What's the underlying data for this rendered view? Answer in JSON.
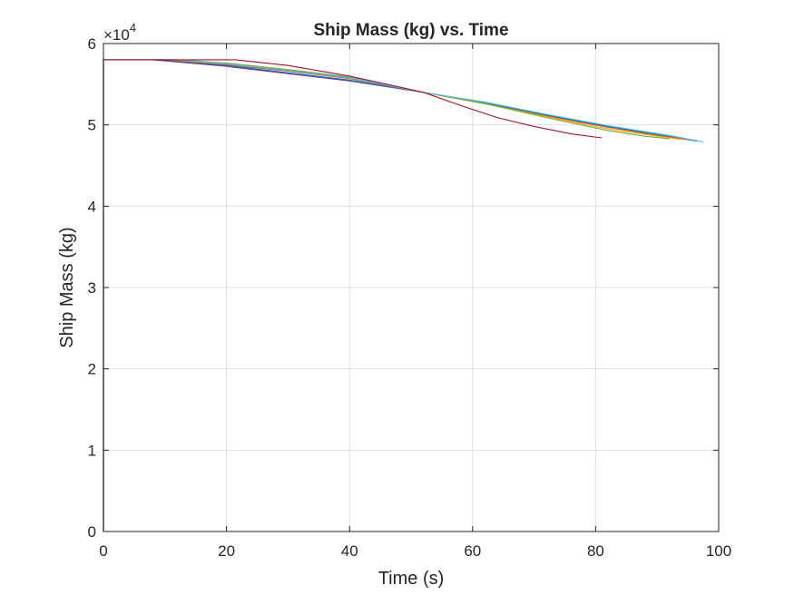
{
  "chart_data": {
    "type": "line",
    "title": "Ship Mass (kg) vs. Time",
    "xlabel": "Time (s)",
    "ylabel": "Ship Mass (kg)",
    "exponent_label": "×10",
    "exponent_power": "4",
    "xlim": [
      0,
      100
    ],
    "ylim": [
      0,
      60000
    ],
    "xticks": [
      0,
      20,
      40,
      60,
      80,
      100
    ],
    "yticks": [
      0,
      10000,
      20000,
      30000,
      40000,
      50000,
      60000
    ],
    "ytick_labels": [
      "0",
      "1",
      "2",
      "3",
      "4",
      "5",
      "6"
    ],
    "grid": true,
    "legend": "none",
    "series": [
      {
        "color": "#7E2F8E",
        "x": [
          0,
          0,
          8,
          20,
          30,
          40,
          52,
          62,
          72,
          82,
          90,
          96.5
        ],
        "y": [
          0,
          58000,
          58000,
          57200,
          56300,
          55400,
          54000,
          52700,
          51200,
          49800,
          48800,
          48000
        ]
      },
      {
        "color": "#0072BD",
        "x": [
          0,
          0,
          9,
          20,
          30,
          40,
          52,
          62,
          72,
          82,
          90,
          96
        ],
        "y": [
          0,
          58000,
          58000,
          57300,
          56400,
          55500,
          54000,
          52700,
          51200,
          49800,
          48800,
          48100
        ]
      },
      {
        "color": "#D95319",
        "x": [
          0,
          0,
          10,
          20,
          30,
          40,
          52,
          62,
          72,
          82,
          90,
          95
        ],
        "y": [
          0,
          58000,
          58000,
          57400,
          56600,
          55700,
          54000,
          52600,
          51100,
          49700,
          48700,
          48200
        ]
      },
      {
        "color": "#EDB120",
        "x": [
          0,
          0,
          11,
          20,
          30,
          40,
          52,
          62,
          72,
          82,
          90,
          94
        ],
        "y": [
          0,
          58000,
          58000,
          57500,
          56700,
          55800,
          54000,
          52600,
          51000,
          49500,
          48600,
          48200
        ]
      },
      {
        "color": "#77AC30",
        "x": [
          0,
          0,
          12,
          20,
          30,
          40,
          52,
          62,
          72,
          82,
          88,
          92
        ],
        "y": [
          0,
          58000,
          58000,
          57600,
          56800,
          55900,
          54000,
          52600,
          50900,
          49300,
          48600,
          48300
        ]
      },
      {
        "color": "#4DBEEE",
        "x": [
          0,
          0,
          12,
          20,
          30,
          40,
          52,
          62,
          72,
          82,
          92,
          97.5
        ],
        "y": [
          0,
          58000,
          58000,
          57500,
          56700,
          55800,
          54000,
          52800,
          51300,
          49900,
          48700,
          47900
        ]
      },
      {
        "color": "#A2142F",
        "x": [
          0,
          0,
          21.5,
          30,
          40,
          46,
          52,
          58,
          64,
          70,
          76,
          81
        ],
        "y": [
          0,
          58000,
          58000,
          57300,
          56000,
          55000,
          54000,
          52400,
          50900,
          49800,
          48900,
          48400
        ]
      }
    ]
  }
}
